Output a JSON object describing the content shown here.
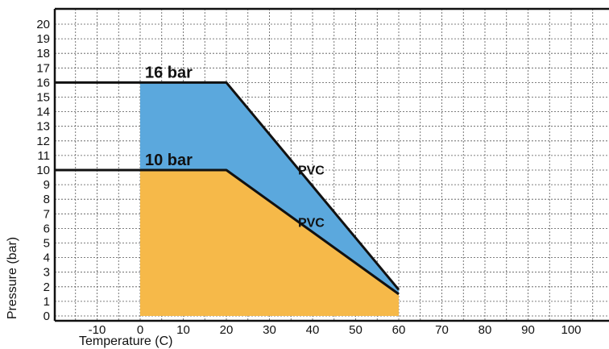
{
  "chart_data": {
    "type": "area",
    "title": "",
    "xlabel": "Temperature (C)",
    "ylabel": "Pressure (bar)",
    "xlim": [
      -20,
      110
    ],
    "ylim": [
      -0.5,
      21
    ],
    "grid": true,
    "x_ticks": [
      -10,
      0,
      10,
      20,
      30,
      40,
      50,
      60,
      70,
      80,
      90,
      100
    ],
    "x_tick_labels": [
      "-10",
      "0",
      "10",
      "20",
      "30",
      "40",
      "50",
      "60",
      "70",
      "80",
      "90",
      "100"
    ],
    "y_ticks": [
      0,
      1,
      2,
      3,
      4,
      5,
      6,
      7,
      8,
      9,
      10,
      11,
      12,
      13,
      14,
      15,
      16,
      17,
      18,
      19,
      20
    ],
    "y_tick_labels": [
      "0",
      "1",
      "2",
      "3",
      "4",
      "5",
      "6",
      "7",
      "8",
      "9",
      "10",
      "11",
      "12",
      "13",
      "14",
      "15",
      "16",
      "17",
      "18",
      "19",
      "20"
    ],
    "series": [
      {
        "name": "PVC",
        "rating": "16 bar",
        "color": "#5ba8dd",
        "x": [
          0,
          20,
          60
        ],
        "y": [
          16,
          16,
          1.8
        ]
      },
      {
        "name": "PVC",
        "rating": "10 bar",
        "color": "#f6b949",
        "x": [
          0,
          20,
          60
        ],
        "y": [
          10,
          10,
          1.5
        ]
      }
    ]
  }
}
